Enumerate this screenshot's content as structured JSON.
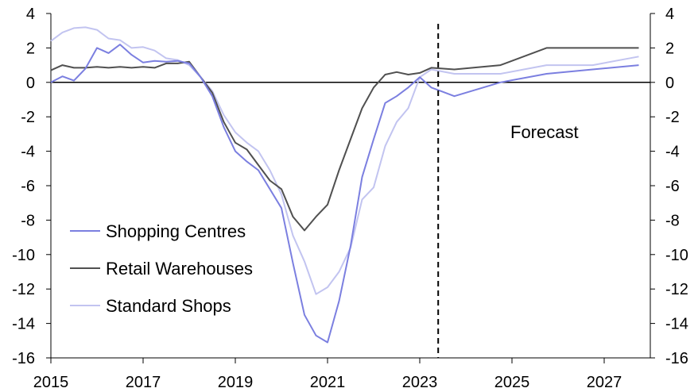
{
  "chart_data": {
    "type": "line",
    "title": "",
    "xlabel": "",
    "ylabel": "",
    "xlim": [
      2015,
      2028
    ],
    "ylim": [
      -16,
      4
    ],
    "x_ticks": [
      2015,
      2017,
      2019,
      2021,
      2023,
      2025,
      2027
    ],
    "y_ticks": [
      -16,
      -14,
      -12,
      -10,
      -8,
      -6,
      -4,
      -2,
      0,
      2,
      4
    ],
    "grid": false,
    "legend_position": "bottom-left",
    "forecast_divider_x": 2023.4,
    "annotation": "Forecast",
    "series": [
      {
        "name": "Shopping Centres",
        "color": "#7b7fe0",
        "points": [
          [
            2015.0,
            0.0
          ],
          [
            2015.25,
            0.35
          ],
          [
            2015.5,
            0.1
          ],
          [
            2015.75,
            0.8
          ],
          [
            2016.0,
            2.0
          ],
          [
            2016.25,
            1.7
          ],
          [
            2016.5,
            2.2
          ],
          [
            2016.75,
            1.6
          ],
          [
            2017.0,
            1.15
          ],
          [
            2017.25,
            1.25
          ],
          [
            2017.5,
            1.2
          ],
          [
            2017.75,
            1.25
          ],
          [
            2018.0,
            1.1
          ],
          [
            2018.25,
            0.3
          ],
          [
            2018.5,
            -0.8
          ],
          [
            2018.75,
            -2.6
          ],
          [
            2019.0,
            -4.0
          ],
          [
            2019.25,
            -4.6
          ],
          [
            2019.5,
            -5.1
          ],
          [
            2019.75,
            -6.2
          ],
          [
            2020.0,
            -7.3
          ],
          [
            2020.25,
            -10.5
          ],
          [
            2020.5,
            -13.5
          ],
          [
            2020.75,
            -14.7
          ],
          [
            2021.0,
            -15.1
          ],
          [
            2021.25,
            -12.7
          ],
          [
            2021.5,
            -9.5
          ],
          [
            2021.75,
            -5.5
          ],
          [
            2022.0,
            -3.3
          ],
          [
            2022.25,
            -1.2
          ],
          [
            2022.5,
            -0.8
          ],
          [
            2022.75,
            -0.3
          ],
          [
            2023.0,
            0.3
          ],
          [
            2023.25,
            -0.3
          ],
          [
            2023.5,
            -0.55
          ],
          [
            2023.75,
            -0.8
          ],
          [
            2024.75,
            0.0
          ],
          [
            2025.75,
            0.5
          ],
          [
            2026.75,
            0.75
          ],
          [
            2027.75,
            1.0
          ]
        ]
      },
      {
        "name": "Retail Warehouses",
        "color": "#505050",
        "points": [
          [
            2015.0,
            0.7
          ],
          [
            2015.25,
            1.0
          ],
          [
            2015.5,
            0.85
          ],
          [
            2015.75,
            0.85
          ],
          [
            2016.0,
            0.9
          ],
          [
            2016.25,
            0.85
          ],
          [
            2016.5,
            0.9
          ],
          [
            2016.75,
            0.85
          ],
          [
            2017.0,
            0.9
          ],
          [
            2017.25,
            0.85
          ],
          [
            2017.5,
            1.1
          ],
          [
            2017.75,
            1.1
          ],
          [
            2018.0,
            1.2
          ],
          [
            2018.25,
            0.3
          ],
          [
            2018.5,
            -0.6
          ],
          [
            2018.75,
            -2.3
          ],
          [
            2019.0,
            -3.5
          ],
          [
            2019.25,
            -3.9
          ],
          [
            2019.5,
            -4.8
          ],
          [
            2019.75,
            -5.7
          ],
          [
            2020.0,
            -6.2
          ],
          [
            2020.25,
            -7.8
          ],
          [
            2020.5,
            -8.6
          ],
          [
            2020.75,
            -7.8
          ],
          [
            2021.0,
            -7.1
          ],
          [
            2021.25,
            -5.1
          ],
          [
            2021.5,
            -3.3
          ],
          [
            2021.75,
            -1.5
          ],
          [
            2022.0,
            -0.3
          ],
          [
            2022.25,
            0.45
          ],
          [
            2022.5,
            0.6
          ],
          [
            2022.75,
            0.45
          ],
          [
            2023.0,
            0.55
          ],
          [
            2023.25,
            0.85
          ],
          [
            2023.75,
            0.75
          ],
          [
            2024.75,
            1.0
          ],
          [
            2025.75,
            2.0
          ],
          [
            2026.75,
            2.0
          ],
          [
            2027.75,
            2.0
          ]
        ]
      },
      {
        "name": "Standard Shops",
        "color": "#c2c4f0",
        "points": [
          [
            2015.0,
            2.4
          ],
          [
            2015.25,
            2.9
          ],
          [
            2015.5,
            3.15
          ],
          [
            2015.75,
            3.2
          ],
          [
            2016.0,
            3.05
          ],
          [
            2016.25,
            2.55
          ],
          [
            2016.5,
            2.45
          ],
          [
            2016.75,
            2.0
          ],
          [
            2017.0,
            2.05
          ],
          [
            2017.25,
            1.85
          ],
          [
            2017.5,
            1.4
          ],
          [
            2017.75,
            1.3
          ],
          [
            2018.0,
            1.0
          ],
          [
            2018.25,
            0.3
          ],
          [
            2018.5,
            -0.5
          ],
          [
            2018.75,
            -1.9
          ],
          [
            2019.0,
            -2.9
          ],
          [
            2019.25,
            -3.5
          ],
          [
            2019.5,
            -4.0
          ],
          [
            2019.75,
            -5.1
          ],
          [
            2020.0,
            -6.5
          ],
          [
            2020.25,
            -8.9
          ],
          [
            2020.5,
            -10.4
          ],
          [
            2020.75,
            -12.3
          ],
          [
            2021.0,
            -11.9
          ],
          [
            2021.25,
            -11.0
          ],
          [
            2021.5,
            -9.6
          ],
          [
            2021.75,
            -6.8
          ],
          [
            2022.0,
            -6.1
          ],
          [
            2022.25,
            -3.7
          ],
          [
            2022.5,
            -2.3
          ],
          [
            2022.75,
            -1.5
          ],
          [
            2023.0,
            0.3
          ],
          [
            2023.25,
            0.75
          ],
          [
            2023.75,
            0.5
          ],
          [
            2024.75,
            0.5
          ],
          [
            2025.75,
            1.0
          ],
          [
            2026.75,
            1.0
          ],
          [
            2027.75,
            1.5
          ]
        ]
      }
    ]
  }
}
